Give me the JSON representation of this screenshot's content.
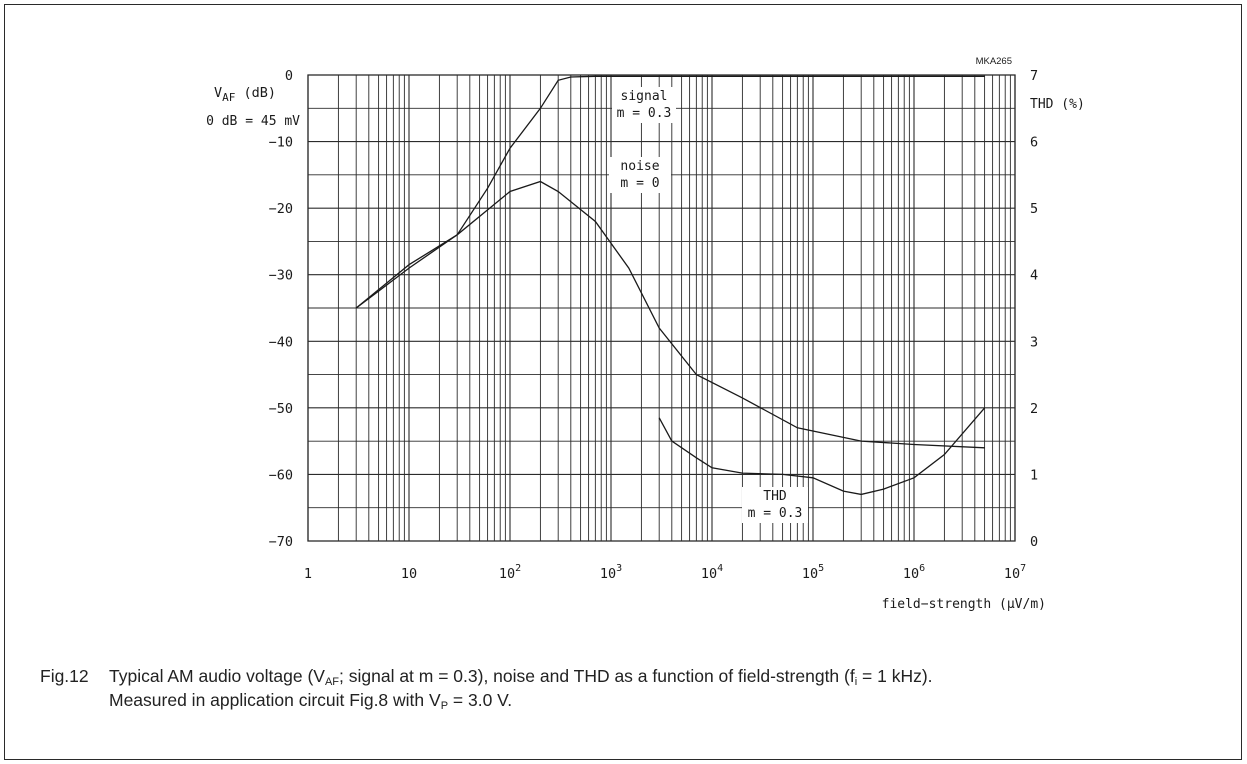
{
  "figure_tag": "MKA265",
  "chart_data": {
    "type": "line",
    "x_scale": "log",
    "xlim": [
      1,
      10000000
    ],
    "x_ticks": [
      {
        "value": 1,
        "base": "1",
        "exp": ""
      },
      {
        "value": 10,
        "base": "10",
        "exp": ""
      },
      {
        "value": 100,
        "base": "10",
        "exp": "2"
      },
      {
        "value": 1000,
        "base": "10",
        "exp": "3"
      },
      {
        "value": 10000,
        "base": "10",
        "exp": "4"
      },
      {
        "value": 100000,
        "base": "10",
        "exp": "5"
      },
      {
        "value": 1000000,
        "base": "10",
        "exp": "6"
      },
      {
        "value": 10000000,
        "base": "10",
        "exp": "7"
      }
    ],
    "xlabel": "field−strength (μV/m)",
    "ylim": [
      -70,
      0
    ],
    "y_ticks": [
      0,
      -10,
      -20,
      -30,
      -40,
      -50,
      -60,
      -70
    ],
    "y_tick_labels": [
      "0",
      "−10",
      "−20",
      "−30",
      "−40",
      "−50",
      "−60",
      "−70"
    ],
    "ylabel_main": "V",
    "ylabel_sub": "AF",
    "ylabel_unit": " (dB)",
    "ylabel_note": "0 dB = 45 mV",
    "y2lim": [
      0,
      7
    ],
    "y2_ticks": [
      0,
      1,
      2,
      3,
      4,
      5,
      6,
      7
    ],
    "y2label": "THD (%)",
    "grid": true,
    "series": [
      {
        "name": "signal",
        "label_lines": [
          "signal",
          "m = 0.3"
        ],
        "axis": "left",
        "points": [
          [
            3,
            -35
          ],
          [
            10,
            -29
          ],
          [
            30,
            -24
          ],
          [
            60,
            -17
          ],
          [
            100,
            -11
          ],
          [
            200,
            -5
          ],
          [
            300,
            -0.8
          ],
          [
            400,
            -0.3
          ],
          [
            700,
            -0.2
          ],
          [
            10000,
            -0.2
          ],
          [
            100000,
            -0.2
          ],
          [
            1000000,
            -0.2
          ],
          [
            5000000,
            -0.2
          ]
        ]
      },
      {
        "name": "noise",
        "label_lines": [
          "noise",
          "m = 0"
        ],
        "axis": "left",
        "points": [
          [
            3,
            -35
          ],
          [
            10,
            -28.5
          ],
          [
            30,
            -24
          ],
          [
            100,
            -17.5
          ],
          [
            200,
            -16
          ],
          [
            300,
            -17.5
          ],
          [
            700,
            -22
          ],
          [
            1500,
            -29
          ],
          [
            3000,
            -38
          ],
          [
            7000,
            -45
          ],
          [
            20000,
            -48.5
          ],
          [
            70000,
            -53
          ],
          [
            300000,
            -55
          ],
          [
            1000000,
            -55.5
          ],
          [
            5000000,
            -56
          ]
        ]
      },
      {
        "name": "THD",
        "label_lines": [
          "THD",
          "m = 0.3"
        ],
        "axis": "right",
        "points": [
          [
            3000,
            1.85
          ],
          [
            4000,
            1.5
          ],
          [
            7000,
            1.25
          ],
          [
            10000,
            1.1
          ],
          [
            20000,
            1.02
          ],
          [
            50000,
            1.0
          ],
          [
            100000,
            0.95
          ],
          [
            200000,
            0.75
          ],
          [
            300000,
            0.7
          ],
          [
            500000,
            0.78
          ],
          [
            1000000,
            0.95
          ],
          [
            2000000,
            1.3
          ],
          [
            5000000,
            2.0
          ]
        ]
      }
    ]
  },
  "caption": {
    "fig_number": "Fig.12",
    "line1_a": "Typical AM audio voltage (V",
    "line1_sub1": "AF",
    "line1_b": "; signal at m = 0.3), noise and THD as a function of field-strength (f",
    "line1_sub2": "i",
    "line1_c": " = 1 kHz).",
    "line2_a": "Measured in application circuit Fig.8 with V",
    "line2_sub": "P",
    "line2_b": " = 3.0 V."
  }
}
